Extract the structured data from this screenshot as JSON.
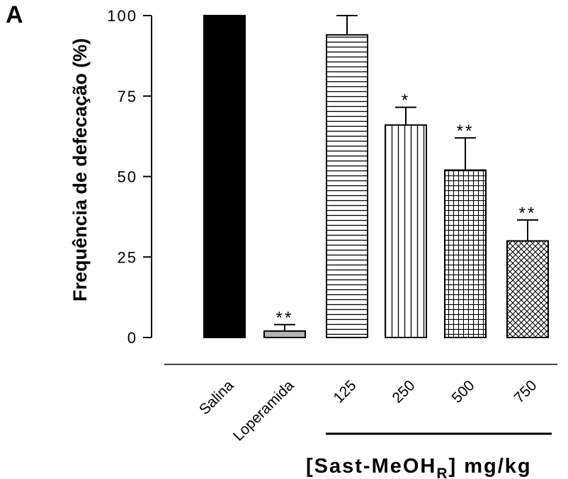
{
  "panel_letter": "A",
  "chart_data": {
    "type": "bar",
    "ylabel": "Frequência de defecação (%)",
    "ylim": [
      0,
      100
    ],
    "yticks": [
      0,
      25,
      50,
      75,
      100
    ],
    "ytick_labels": [
      "0",
      "25",
      "50",
      "75",
      "100"
    ],
    "categories": [
      "Salina",
      "Loperamida",
      "125",
      "250",
      "500",
      "750"
    ],
    "values": [
      100,
      2,
      94,
      66,
      52,
      30
    ],
    "errors": [
      0,
      2,
      6,
      5.5,
      10,
      6.5
    ],
    "significance": [
      "",
      "**",
      "",
      "*",
      "**",
      "**"
    ],
    "patterns": [
      "solid-black",
      "solid-gray",
      "horizontal-lines",
      "vertical-lines",
      "grid",
      "crosshatch"
    ],
    "colors": {
      "salina": "#000000",
      "loperamida": "#b3b3b3",
      "outline": "#000000"
    },
    "group_label": {
      "prefix": "[Sast-MeOH",
      "subscript": "R",
      "suffix": "] mg/kg"
    }
  }
}
